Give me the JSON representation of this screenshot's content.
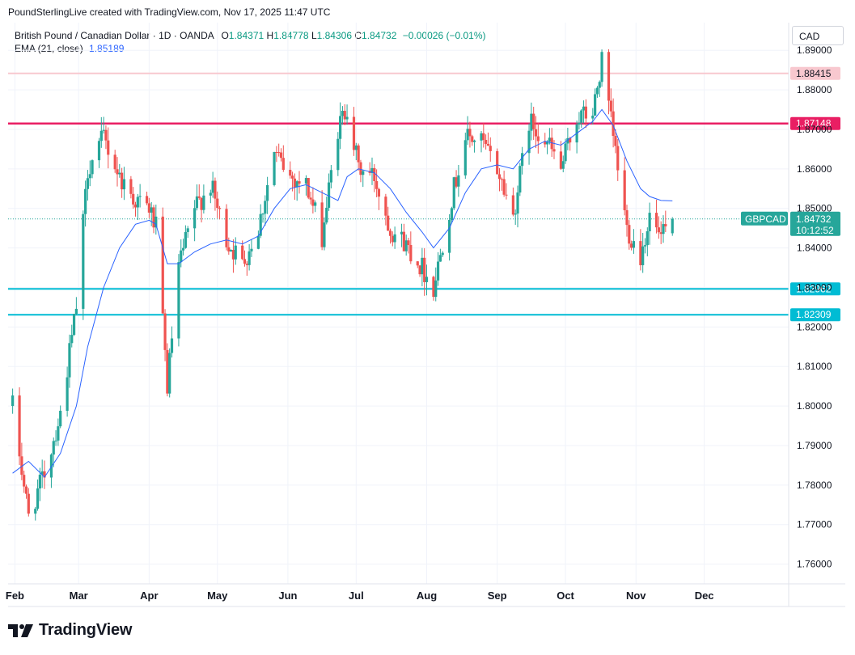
{
  "header": {
    "attribution": "PoundSterlingLive created with TradingView.com, Nov 17, 2025 11:47 UTC"
  },
  "legend": {
    "symbol_title": "British Pound / Canadian Dollar · 1D · OANDA",
    "o_label": "O",
    "o_value": "1.84371",
    "h_label": "H",
    "h_value": "1.84778",
    "l_label": "L",
    "l_value": "1.84306",
    "c_label": "C",
    "c_value": "1.84732",
    "change": "−0.00026 (−0.01%)",
    "ema_label": "EMA (21, close)",
    "ema_value": "1.85189"
  },
  "currency_button": "CAD",
  "brand": {
    "name": "TradingView"
  },
  "colors": {
    "up": "#26a69a",
    "down": "#ef5350",
    "ema": "#2962ff",
    "resistance_light": "#f8c8cf",
    "resistance": "#e91e63",
    "support": "#00bcd4",
    "grid": "#f0f3fa",
    "axis_text": "#131722"
  },
  "chart_data": {
    "type": "candlestick",
    "title": "British Pound / Canadian Dollar · 1D · OANDA",
    "ylabel": "CAD",
    "ylim": [
      1.755,
      1.897
    ],
    "y_ticks": [
      "1.76000",
      "1.77000",
      "1.78000",
      "1.79000",
      "1.80000",
      "1.81000",
      "1.82000",
      "1.83000",
      "1.84000",
      "1.85000",
      "1.86000",
      "1.87000",
      "1.88000",
      "1.89000"
    ],
    "x_ticks": [
      "Feb",
      "Mar",
      "Apr",
      "May",
      "Jun",
      "Jul",
      "Aug",
      "Sep",
      "Oct",
      "Nov",
      "Dec"
    ],
    "horizontal_lines": [
      {
        "name": "resistance-upper",
        "value": 1.88415,
        "label": "1.88415",
        "color": "#f8c8cf"
      },
      {
        "name": "resistance",
        "value": 1.87148,
        "label": "1.87148",
        "color": "#e91e63"
      },
      {
        "name": "support-upper",
        "value": 1.82962,
        "label": "1.82962",
        "color": "#00bcd4"
      },
      {
        "name": "support-lower",
        "value": 1.82309,
        "label": "1.82309",
        "color": "#00bcd4"
      }
    ],
    "last_price": {
      "symbol": "GBPCAD",
      "value": 1.84732,
      "label": "1.84732",
      "countdown": "10:12:52"
    },
    "ema_period": 21,
    "series_close_path": [
      {
        "date": "2025-01-31",
        "close": 1.8
      },
      {
        "date": "2025-02-07",
        "close": 1.772
      },
      {
        "date": "2025-02-14",
        "close": 1.783
      },
      {
        "date": "2025-02-21",
        "close": 1.798
      },
      {
        "date": "2025-02-28",
        "close": 1.825
      },
      {
        "date": "2025-03-05",
        "close": 1.86
      },
      {
        "date": "2025-03-12",
        "close": 1.868
      },
      {
        "date": "2025-03-19",
        "close": 1.858
      },
      {
        "date": "2025-03-26",
        "close": 1.852
      },
      {
        "date": "2025-04-01",
        "close": 1.85
      },
      {
        "date": "2025-04-04",
        "close": 1.845
      },
      {
        "date": "2025-04-09",
        "close": 1.805
      },
      {
        "date": "2025-04-14",
        "close": 1.835
      },
      {
        "date": "2025-04-21",
        "close": 1.85
      },
      {
        "date": "2025-04-28",
        "close": 1.856
      },
      {
        "date": "2025-05-05",
        "close": 1.842
      },
      {
        "date": "2025-05-12",
        "close": 1.836
      },
      {
        "date": "2025-05-19",
        "close": 1.845
      },
      {
        "date": "2025-05-26",
        "close": 1.864
      },
      {
        "date": "2025-06-02",
        "close": 1.858
      },
      {
        "date": "2025-06-09",
        "close": 1.856
      },
      {
        "date": "2025-06-16",
        "close": 1.843
      },
      {
        "date": "2025-06-23",
        "close": 1.87
      },
      {
        "date": "2025-06-27",
        "close": 1.876
      },
      {
        "date": "2025-07-02",
        "close": 1.86
      },
      {
        "date": "2025-07-09",
        "close": 1.858
      },
      {
        "date": "2025-07-16",
        "close": 1.845
      },
      {
        "date": "2025-07-23",
        "close": 1.841
      },
      {
        "date": "2025-07-30",
        "close": 1.835
      },
      {
        "date": "2025-08-04",
        "close": 1.83
      },
      {
        "date": "2025-08-11",
        "close": 1.85
      },
      {
        "date": "2025-08-18",
        "close": 1.868
      },
      {
        "date": "2025-08-25",
        "close": 1.867
      },
      {
        "date": "2025-09-01",
        "close": 1.86
      },
      {
        "date": "2025-09-08",
        "close": 1.848
      },
      {
        "date": "2025-09-15",
        "close": 1.872
      },
      {
        "date": "2025-09-22",
        "close": 1.868
      },
      {
        "date": "2025-09-29",
        "close": 1.86
      },
      {
        "date": "2025-10-06",
        "close": 1.873
      },
      {
        "date": "2025-10-13",
        "close": 1.874
      },
      {
        "date": "2025-10-17",
        "close": 1.887
      },
      {
        "date": "2025-10-22",
        "close": 1.868
      },
      {
        "date": "2025-10-28",
        "close": 1.845
      },
      {
        "date": "2025-11-03",
        "close": 1.838
      },
      {
        "date": "2025-11-07",
        "close": 1.848
      },
      {
        "date": "2025-11-12",
        "close": 1.842
      },
      {
        "date": "2025-11-17",
        "close": 1.84732
      }
    ],
    "ema_path": [
      {
        "date": "2025-01-31",
        "value": 1.783
      },
      {
        "date": "2025-02-07",
        "value": 1.786
      },
      {
        "date": "2025-02-14",
        "value": 1.782
      },
      {
        "date": "2025-02-21",
        "value": 1.788
      },
      {
        "date": "2025-02-28",
        "value": 1.8
      },
      {
        "date": "2025-03-05",
        "value": 1.815
      },
      {
        "date": "2025-03-12",
        "value": 1.83
      },
      {
        "date": "2025-03-19",
        "value": 1.84
      },
      {
        "date": "2025-03-26",
        "value": 1.846
      },
      {
        "date": "2025-04-01",
        "value": 1.847
      },
      {
        "date": "2025-04-04",
        "value": 1.846
      },
      {
        "date": "2025-04-09",
        "value": 1.836
      },
      {
        "date": "2025-04-14",
        "value": 1.836
      },
      {
        "date": "2025-04-21",
        "value": 1.839
      },
      {
        "date": "2025-04-28",
        "value": 1.841
      },
      {
        "date": "2025-05-05",
        "value": 1.842
      },
      {
        "date": "2025-05-12",
        "value": 1.841
      },
      {
        "date": "2025-05-19",
        "value": 1.843
      },
      {
        "date": "2025-05-26",
        "value": 1.85
      },
      {
        "date": "2025-06-02",
        "value": 1.855
      },
      {
        "date": "2025-06-09",
        "value": 1.856
      },
      {
        "date": "2025-06-16",
        "value": 1.854
      },
      {
        "date": "2025-06-23",
        "value": 1.852
      },
      {
        "date": "2025-06-27",
        "value": 1.858
      },
      {
        "date": "2025-07-02",
        "value": 1.86
      },
      {
        "date": "2025-07-09",
        "value": 1.859
      },
      {
        "date": "2025-07-16",
        "value": 1.855
      },
      {
        "date": "2025-07-23",
        "value": 1.849
      },
      {
        "date": "2025-07-30",
        "value": 1.844
      },
      {
        "date": "2025-08-04",
        "value": 1.84
      },
      {
        "date": "2025-08-11",
        "value": 1.845
      },
      {
        "date": "2025-08-18",
        "value": 1.854
      },
      {
        "date": "2025-08-25",
        "value": 1.86
      },
      {
        "date": "2025-09-01",
        "value": 1.861
      },
      {
        "date": "2025-09-08",
        "value": 1.86
      },
      {
        "date": "2025-09-15",
        "value": 1.865
      },
      {
        "date": "2025-09-22",
        "value": 1.867
      },
      {
        "date": "2025-09-29",
        "value": 1.866
      },
      {
        "date": "2025-10-06",
        "value": 1.869
      },
      {
        "date": "2025-10-13",
        "value": 1.872
      },
      {
        "date": "2025-10-17",
        "value": 1.875
      },
      {
        "date": "2025-10-22",
        "value": 1.871
      },
      {
        "date": "2025-10-28",
        "value": 1.862
      },
      {
        "date": "2025-11-03",
        "value": 1.855
      },
      {
        "date": "2025-11-07",
        "value": 1.853
      },
      {
        "date": "2025-11-12",
        "value": 1.852
      },
      {
        "date": "2025-11-17",
        "value": 1.8519
      }
    ]
  }
}
